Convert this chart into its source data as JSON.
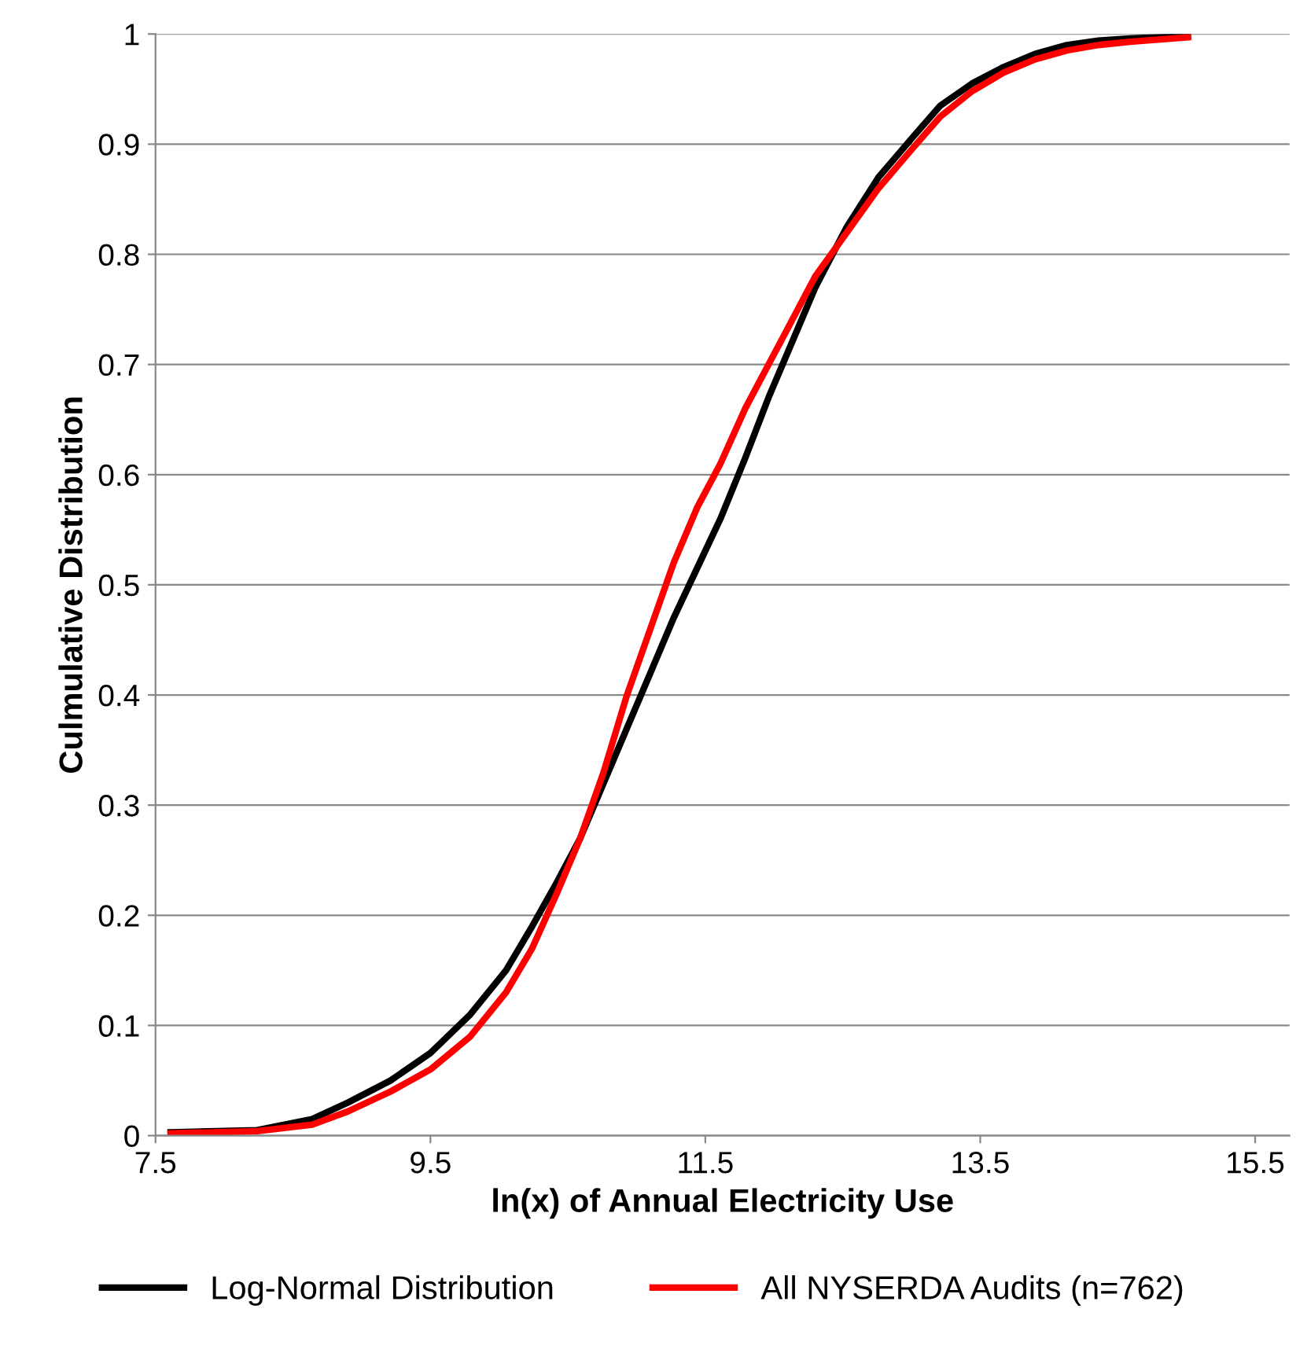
{
  "chart_data": {
    "type": "line",
    "xlabel": "ln(x) of Annual Electricity Use",
    "ylabel": "Culmulative Distribution",
    "xlim": [
      7.5,
      15.75
    ],
    "xticks": [
      7.5,
      9.5,
      11.5,
      13.5,
      15.5
    ],
    "ylim": [
      0,
      1
    ],
    "yticks": [
      0,
      0.1,
      0.2,
      0.3,
      0.4,
      0.5,
      0.6,
      0.7,
      0.8,
      0.9,
      1
    ],
    "grid": "y",
    "legend": "bottom",
    "marker": "none",
    "line_style": "solid",
    "series": [
      {
        "name": "Log-Normal Distribution",
        "color": "#000000",
        "x": [
          7.61,
          8.24,
          8.64,
          8.9,
          9.21,
          9.5,
          9.79,
          10.05,
          10.24,
          10.42,
          10.59,
          10.76,
          10.93,
          11.1,
          11.27,
          11.44,
          11.61,
          11.79,
          11.96,
          12.13,
          12.3,
          12.53,
          12.76,
          13.0,
          13.21,
          13.44,
          13.67,
          13.9,
          14.13,
          14.36,
          14.59,
          15.01
        ],
        "values": [
          0.003,
          0.005,
          0.015,
          0.03,
          0.05,
          0.075,
          0.11,
          0.15,
          0.19,
          0.23,
          0.27,
          0.32,
          0.37,
          0.42,
          0.47,
          0.515,
          0.56,
          0.615,
          0.67,
          0.72,
          0.77,
          0.825,
          0.87,
          0.905,
          0.935,
          0.955,
          0.97,
          0.982,
          0.99,
          0.994,
          0.996,
          0.998
        ]
      },
      {
        "name": "All NYSERDA Audits (n=762)",
        "color": "#ff0000",
        "x": [
          7.61,
          8.24,
          8.64,
          8.9,
          9.21,
          9.5,
          9.79,
          10.05,
          10.24,
          10.42,
          10.59,
          10.76,
          10.93,
          11.1,
          11.27,
          11.44,
          11.61,
          11.79,
          11.96,
          12.13,
          12.3,
          12.53,
          12.76,
          13.0,
          13.21,
          13.44,
          13.67,
          13.9,
          14.13,
          14.36,
          14.59,
          15.01
        ],
        "values": [
          0.002,
          0.004,
          0.01,
          0.022,
          0.04,
          0.06,
          0.09,
          0.13,
          0.17,
          0.22,
          0.27,
          0.33,
          0.4,
          0.46,
          0.52,
          0.57,
          0.61,
          0.66,
          0.7,
          0.74,
          0.78,
          0.82,
          0.86,
          0.895,
          0.925,
          0.948,
          0.965,
          0.977,
          0.985,
          0.99,
          0.993,
          0.997
        ]
      }
    ]
  }
}
